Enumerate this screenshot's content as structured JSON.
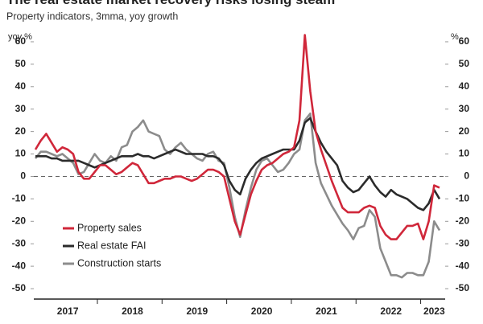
{
  "chart_data": {
    "type": "line",
    "title": "The real estate market recovery risks losing steam",
    "subtitle": "Property indicators, 3mma, yoy growth",
    "y_label": "yoy %",
    "y2_label": "%",
    "categories": [
      null,
      null,
      null,
      null,
      null,
      null,
      "2017",
      null,
      null,
      null,
      null,
      null,
      null,
      null,
      null,
      null,
      null,
      null,
      "2018",
      null,
      null,
      null,
      null,
      null,
      null,
      null,
      null,
      null,
      null,
      null,
      "2019",
      null,
      null,
      null,
      null,
      null,
      null,
      null,
      null,
      null,
      null,
      null,
      "2020",
      null,
      null,
      null,
      null,
      null,
      null,
      null,
      null,
      null,
      null,
      null,
      "2021",
      null,
      null,
      null,
      null,
      null,
      null,
      null,
      null,
      null,
      null,
      null,
      "2022",
      null,
      null,
      null,
      null,
      null,
      null,
      null,
      "2023",
      null
    ],
    "series": [
      {
        "name": "Property sales",
        "color": "#d0273a",
        "values": [
          12,
          16,
          19,
          15,
          11,
          13,
          12,
          10,
          2,
          -1,
          -1,
          2,
          5,
          5,
          3,
          1,
          2,
          4,
          6,
          5,
          1,
          -3,
          -3,
          -2,
          -1,
          -1,
          0,
          0,
          -1,
          -2,
          -1,
          1,
          3,
          3,
          2,
          0,
          -10,
          -20,
          -26,
          -17,
          -8,
          -2,
          3,
          5,
          6,
          8,
          10,
          11,
          13,
          25,
          63,
          38,
          20,
          12,
          5,
          -2,
          -8,
          -14,
          -16,
          -16,
          -16,
          -14,
          -13,
          -14,
          -22,
          -26,
          -28,
          -28,
          -25,
          -22,
          -22,
          -21,
          -28,
          -20,
          -4,
          -5
        ]
      },
      {
        "name": "Real estate FAI",
        "color": "#2b2b2b",
        "values": [
          9,
          9,
          9,
          8,
          8,
          7,
          7,
          7,
          7,
          6,
          5,
          4,
          5,
          6,
          7,
          8,
          9,
          9,
          9,
          10,
          9,
          9,
          8,
          9,
          10,
          11,
          12,
          11,
          10,
          10,
          10,
          10,
          9,
          9,
          8,
          5,
          -2,
          -6,
          -8,
          -1,
          3,
          6,
          8,
          9,
          10,
          11,
          12,
          12,
          12,
          16,
          24,
          26,
          20,
          15,
          11,
          8,
          5,
          -2,
          -5,
          -7,
          -6,
          -3,
          0,
          -4,
          -7,
          -9,
          -6,
          -8,
          -9,
          -10,
          -12,
          -14,
          -15,
          -12,
          -6,
          -10
        ]
      },
      {
        "name": "Construction starts",
        "color": "#8c8c8c",
        "values": [
          8,
          11,
          11,
          10,
          9,
          10,
          8,
          6,
          1,
          2,
          6,
          10,
          7,
          6,
          9,
          7,
          13,
          14,
          20,
          22,
          25,
          20,
          19,
          18,
          12,
          10,
          13,
          15,
          12,
          10,
          8,
          7,
          10,
          11,
          7,
          6,
          -5,
          -18,
          -27,
          -15,
          -5,
          3,
          7,
          8,
          5,
          2,
          3,
          6,
          10,
          12,
          25,
          28,
          6,
          -3,
          -8,
          -13,
          -17,
          -21,
          -24,
          -28,
          -23,
          -22,
          -15,
          -18,
          -32,
          -38,
          -44,
          -44,
          -45,
          -43,
          -43,
          -44,
          -44,
          -38,
          -20,
          -24
        ]
      }
    ],
    "ylim": [
      -55,
      65
    ],
    "yticks": [
      -50,
      -40,
      -30,
      -20,
      -10,
      0,
      10,
      20,
      30,
      40,
      50,
      60
    ],
    "y2lim": [
      -55,
      65
    ],
    "y2ticks": [
      -50,
      -40,
      -30,
      -20,
      -10,
      0,
      10,
      20,
      30,
      40,
      50,
      60
    ],
    "zero_line": "dashed",
    "legend": "lower left"
  }
}
